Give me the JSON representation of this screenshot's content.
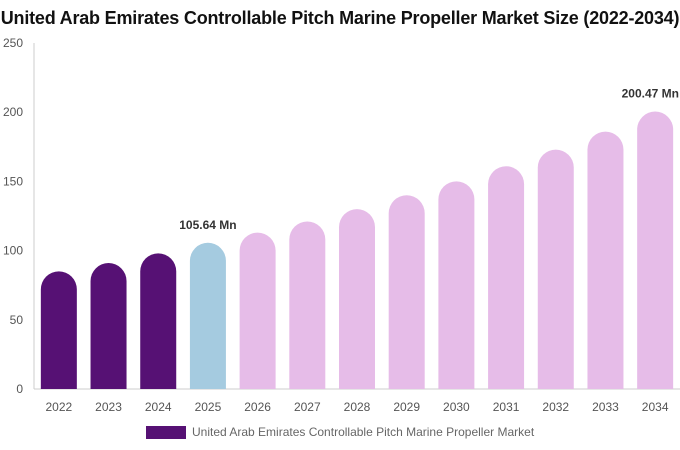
{
  "title": "United Arab Emirates Controllable Pitch Marine Propeller Market Size (2022-2034)",
  "colors": {
    "historical": "#561174",
    "current": "#a5cbe0",
    "forecast": "#e6bce8",
    "axis": "#cccccc"
  },
  "legend": {
    "label": "United Arab Emirates Controllable Pitch Marine Propeller Market",
    "color": "#561174"
  },
  "chart_data": {
    "type": "bar",
    "title": "United Arab Emirates Controllable Pitch Marine Propeller Market Size (2022-2034)",
    "categories": [
      "2022",
      "2023",
      "2024",
      "2025",
      "2026",
      "2027",
      "2028",
      "2029",
      "2030",
      "2031",
      "2032",
      "2033",
      "2034"
    ],
    "series": [
      {
        "name": "United Arab Emirates Controllable Pitch Marine Propeller Market",
        "values": [
          85,
          91,
          98,
          105.64,
          113,
          121,
          130,
          140,
          150,
          161,
          173,
          186,
          200.47
        ]
      }
    ],
    "segments": [
      "historical",
      "historical",
      "historical",
      "current",
      "forecast",
      "forecast",
      "forecast",
      "forecast",
      "forecast",
      "forecast",
      "forecast",
      "forecast",
      "forecast"
    ],
    "data_labels": [
      {
        "category": "2025",
        "text": "105.64 Mn"
      },
      {
        "category": "2034",
        "text": "200.47 Mn"
      }
    ],
    "yticks": [
      0,
      50,
      100,
      150,
      200,
      250
    ],
    "ylim": [
      0,
      250
    ],
    "xlabel": "",
    "ylabel": "",
    "grid": false,
    "legend_position": "bottom"
  }
}
